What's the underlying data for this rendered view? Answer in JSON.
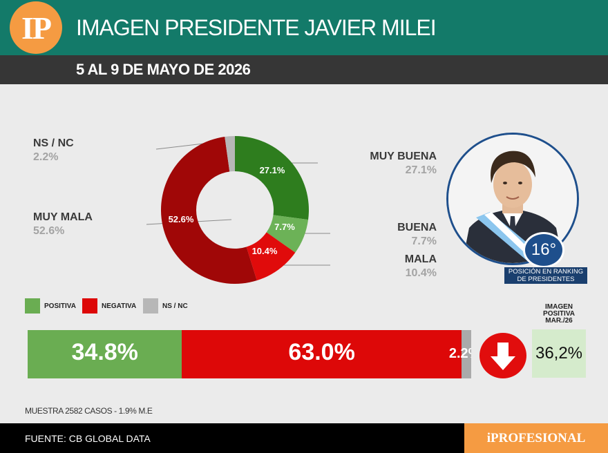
{
  "header": {
    "logo_text": "IP",
    "title": "IMAGEN PRESIDENTE JAVIER MILEI",
    "subtitle": "5 AL 9 DE MAYO DE 2026"
  },
  "colors": {
    "muy_buena": "#2e7d1e",
    "buena": "#6cb257",
    "mala": "#e00b0b",
    "muy_mala": "#a00707",
    "ns_nc": "#b7b7b7",
    "header_bg": "#137a69",
    "accent_orange": "#f59b42"
  },
  "chart_data": [
    {
      "type": "pie",
      "variant": "donut",
      "categories": [
        "MUY BUENA",
        "BUENA",
        "MALA",
        "MUY MALA",
        "NS / NC"
      ],
      "values": [
        27.1,
        7.7,
        10.4,
        52.6,
        2.2
      ],
      "labels": [
        "27.1%",
        "7.7%",
        "10.4%",
        "52.6%",
        "2.2%"
      ],
      "colors": [
        "#2e7d1e",
        "#6cb257",
        "#e00b0b",
        "#a00707",
        "#b7b7b7"
      ]
    },
    {
      "type": "bar",
      "orientation": "horizontal",
      "stacked": true,
      "categories": [
        "POSITIVA",
        "NEGATIVA",
        "NS / NC"
      ],
      "values": [
        34.8,
        63.0,
        2.2
      ],
      "labels": [
        "34.8%",
        "63.0%",
        "2.2%"
      ],
      "colors": [
        "#6aad52",
        "#dd0808",
        "#aaaaaa"
      ]
    }
  ],
  "ranking": {
    "position": "16°",
    "label": "POSICIÓN EN RANKING DE PRESIDENTES"
  },
  "legend": [
    {
      "label": "POSITIVA",
      "color": "#6aad52"
    },
    {
      "label": "NEGATIVA",
      "color": "#dd0808"
    },
    {
      "label": "NS / NC",
      "color": "#b7b7b7"
    }
  ],
  "comparison": {
    "label": "IMAGEN POSITIVA MAR./26",
    "value": "36,2%",
    "trend_icon": "arrow-down-icon"
  },
  "sample_text": "MUESTRA 2582 CASOS - 1.9% M.E",
  "footer": {
    "source": "FUENTE: CB GLOBAL DATA",
    "brand": "iPROFESIONAL"
  }
}
